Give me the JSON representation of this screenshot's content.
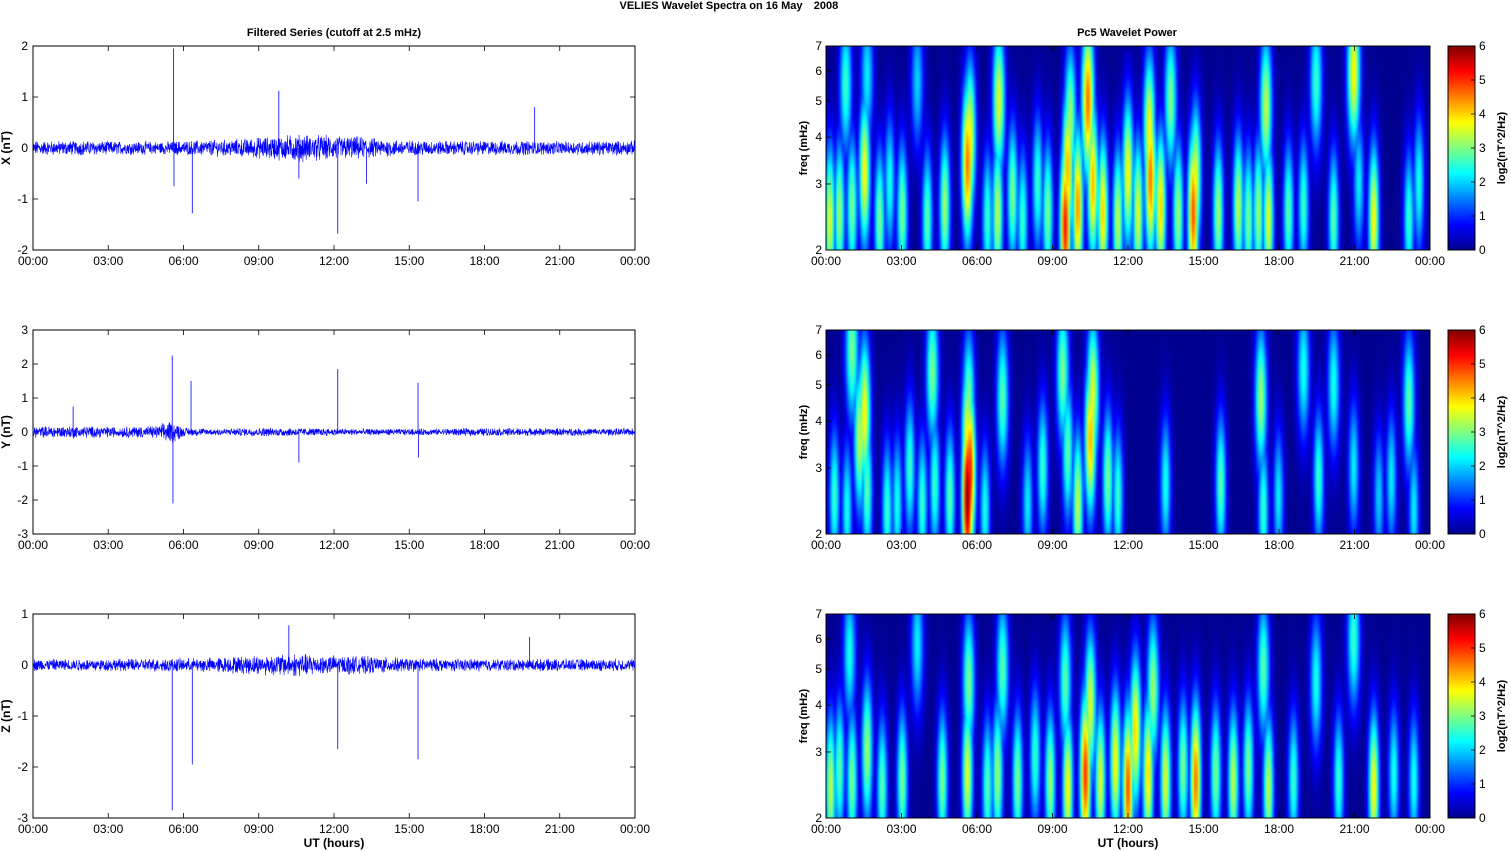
{
  "figure": {
    "suptitle": "VELIES Wavelet Spectra on 16 May",
    "year": "2008",
    "left_title": "Filtered Series (cutoff at 2.5 mHz)",
    "right_title": "Pc5 Wavelet Power",
    "xlabel": "UT (hours)",
    "x_ticks": [
      "00:00",
      "03:00",
      "06:00",
      "09:00",
      "12:00",
      "15:00",
      "18:00",
      "21:00",
      "00:00"
    ],
    "freq_label": "freq (mHz)",
    "freq_ticks": [
      "2",
      "3",
      "4",
      "5",
      "6",
      "7"
    ],
    "colorbar_label": "log2(nT^2/Hz)",
    "colorbar_ticks": [
      "0",
      "1",
      "2",
      "3",
      "4",
      "5",
      "6"
    ],
    "colorbar_colors": [
      "#00008f",
      "#0000ff",
      "#0080ff",
      "#00ffff",
      "#80ff80",
      "#ffff00",
      "#ff8000",
      "#ff0000",
      "#800000"
    ],
    "trace_color": "#0000ff"
  },
  "chart_data": [
    {
      "type": "line",
      "title": "Filtered Series (cutoff at 2.5 mHz)",
      "ylabel": "X (nT)",
      "xlabel": "",
      "xlim": [
        0,
        24
      ],
      "ylim": [
        -2,
        2
      ],
      "y_ticks": [
        "-2",
        "-1",
        "0",
        "1",
        "2"
      ],
      "noise": 0.12,
      "series": [
        {
          "noise_envelope": {
            "x": [
              0,
              2,
              4,
              5.4,
              6,
              8,
              9.5,
              10.5,
              12,
              13,
              14,
              15,
              16.5,
              18,
              19.5,
              21,
              22,
              24
            ],
            "amp": [
              1.0,
              1.0,
              0.9,
              0.9,
              1.0,
              1.2,
              1.6,
              1.9,
              1.7,
              1.6,
              1.2,
              1.1,
              1.0,
              1.0,
              1.0,
              0.9,
              1.0,
              1.0
            ]
          },
          "spikes": [
            {
              "x": 5.6,
              "y": 1.95
            },
            {
              "x": 5.62,
              "y": -0.75
            },
            {
              "x": 6.35,
              "y": -1.28
            },
            {
              "x": 9.8,
              "y": 1.12
            },
            {
              "x": 12.15,
              "y": -1.68
            },
            {
              "x": 15.35,
              "y": -1.05
            },
            {
              "x": 20.0,
              "y": 0.8
            },
            {
              "x": 10.6,
              "y": -0.6
            },
            {
              "x": 13.3,
              "y": -0.7
            }
          ]
        }
      ]
    },
    {
      "type": "line",
      "ylabel": "Y (nT)",
      "xlabel": "",
      "xlim": [
        0,
        24
      ],
      "ylim": [
        -3,
        3
      ],
      "y_ticks": [
        "-3",
        "-2",
        "-1",
        "0",
        "1",
        "2",
        "3"
      ],
      "noise": 0.11,
      "series": [
        {
          "noise_envelope": {
            "x": [
              0,
              1.5,
              3,
              5,
              5.5,
              6,
              7,
              10,
              11,
              12,
              15,
              18,
              24
            ],
            "amp": [
              1.3,
              1.4,
              1.2,
              1.4,
              2.8,
              1.0,
              0.8,
              1.0,
              0.9,
              0.8,
              0.7,
              0.9,
              0.8
            ]
          },
          "spikes": [
            {
              "x": 5.55,
              "y": 2.25
            },
            {
              "x": 5.58,
              "y": -2.1
            },
            {
              "x": 6.3,
              "y": 1.5
            },
            {
              "x": 12.15,
              "y": 1.85
            },
            {
              "x": 15.35,
              "y": 1.45
            },
            {
              "x": 15.37,
              "y": -0.75
            },
            {
              "x": 10.6,
              "y": -0.9
            },
            {
              "x": 1.6,
              "y": 0.75
            }
          ]
        }
      ]
    },
    {
      "type": "line",
      "ylabel": "Z (nT)",
      "xlabel": "UT (hours)",
      "xlim": [
        0,
        24
      ],
      "ylim": [
        -3,
        1
      ],
      "y_ticks": [
        "-3",
        "-2",
        "-1",
        "0",
        "1"
      ],
      "noise": 0.1,
      "series": [
        {
          "noise_envelope": {
            "x": [
              0,
              3,
              5.5,
              7,
              9,
              10.5,
              12,
              13.5,
              15,
              18,
              21,
              24
            ],
            "amp": [
              1.0,
              1.0,
              1.1,
              1.2,
              1.6,
              1.9,
              1.6,
              1.4,
              1.1,
              1.0,
              1.0,
              1.0
            ]
          },
          "spikes": [
            {
              "x": 5.55,
              "y": -2.85
            },
            {
              "x": 6.35,
              "y": -1.95
            },
            {
              "x": 12.15,
              "y": -1.65
            },
            {
              "x": 15.35,
              "y": -1.85
            },
            {
              "x": 10.2,
              "y": 0.78
            },
            {
              "x": 19.8,
              "y": 0.55
            }
          ]
        }
      ]
    },
    {
      "type": "heatmap",
      "title": "Pc5 Wavelet Power",
      "xlabel": "",
      "ylabel": "freq (mHz)",
      "xlim": [
        0,
        24
      ],
      "ylim": [
        2,
        7
      ],
      "yscale": "log",
      "clim": [
        0,
        6
      ],
      "blobs": [
        [
          0.12,
          2.4,
          3.6
        ],
        [
          0.5,
          2.5,
          3.2
        ],
        [
          0.75,
          5.5,
          2.6
        ],
        [
          1.0,
          2.6,
          3.0
        ],
        [
          1.5,
          3.2,
          3.8
        ],
        [
          1.6,
          5.8,
          2.2
        ],
        [
          2.1,
          2.4,
          3.0
        ],
        [
          2.5,
          3.0,
          2.4
        ],
        [
          3.0,
          2.5,
          3.0
        ],
        [
          3.6,
          5.6,
          2.0
        ],
        [
          4.0,
          2.4,
          2.8
        ],
        [
          4.7,
          2.6,
          3.2
        ],
        [
          5.6,
          3.4,
          4.6
        ],
        [
          5.7,
          4.0,
          3.8
        ],
        [
          6.4,
          2.4,
          2.6
        ],
        [
          6.8,
          2.5,
          3.4
        ],
        [
          6.85,
          5.0,
          3.6
        ],
        [
          7.4,
          2.8,
          3.0
        ],
        [
          7.8,
          2.4,
          2.6
        ],
        [
          8.4,
          3.0,
          2.6
        ],
        [
          8.8,
          2.5,
          3.0
        ],
        [
          9.5,
          2.3,
          5.2
        ],
        [
          9.6,
          3.3,
          4.2
        ],
        [
          9.7,
          4.5,
          3.2
        ],
        [
          10.0,
          2.6,
          4.4
        ],
        [
          10.4,
          5.0,
          4.6
        ],
        [
          10.6,
          3.0,
          4.2
        ],
        [
          11.0,
          2.5,
          4.0
        ],
        [
          11.6,
          2.4,
          3.4
        ],
        [
          12.0,
          3.2,
          3.8
        ],
        [
          12.4,
          2.5,
          3.6
        ],
        [
          12.9,
          3.1,
          4.6
        ],
        [
          12.85,
          4.2,
          3.8
        ],
        [
          13.3,
          2.6,
          4.0
        ],
        [
          13.7,
          5.0,
          3.0
        ],
        [
          14.0,
          2.5,
          3.2
        ],
        [
          14.6,
          2.5,
          4.8
        ],
        [
          14.7,
          3.1,
          3.6
        ],
        [
          15.6,
          2.5,
          3.2
        ],
        [
          16.4,
          2.6,
          3.4
        ],
        [
          16.8,
          2.4,
          3.0
        ],
        [
          17.2,
          2.5,
          3.2
        ],
        [
          17.5,
          4.8,
          3.4
        ],
        [
          17.6,
          2.4,
          3.6
        ],
        [
          18.4,
          2.5,
          2.8
        ],
        [
          19.0,
          2.6,
          2.6
        ],
        [
          19.5,
          5.6,
          2.6
        ],
        [
          20.2,
          2.4,
          2.8
        ],
        [
          21.0,
          6.0,
          3.8
        ],
        [
          21.2,
          3.0,
          2.2
        ],
        [
          21.8,
          2.4,
          3.8
        ],
        [
          23.2,
          2.4,
          2.6
        ],
        [
          23.6,
          3.0,
          2.4
        ]
      ]
    },
    {
      "type": "heatmap",
      "ylabel": "freq (mHz)",
      "xlabel": "",
      "xlim": [
        0,
        24
      ],
      "ylim": [
        2,
        7
      ],
      "yscale": "log",
      "clim": [
        0,
        6
      ],
      "blobs": [
        [
          0.3,
          2.5,
          2.6
        ],
        [
          0.8,
          2.3,
          2.4
        ],
        [
          1.0,
          6.2,
          3.0
        ],
        [
          1.3,
          3.6,
          3.4
        ],
        [
          1.5,
          4.2,
          3.8
        ],
        [
          1.6,
          2.6,
          2.8
        ],
        [
          2.4,
          2.3,
          2.6
        ],
        [
          2.8,
          2.4,
          2.4
        ],
        [
          3.3,
          3.0,
          2.6
        ],
        [
          3.8,
          2.4,
          2.6
        ],
        [
          4.2,
          5.4,
          3.0
        ],
        [
          4.3,
          2.7,
          2.6
        ],
        [
          4.9,
          2.5,
          2.8
        ],
        [
          5.6,
          2.5,
          6.0
        ],
        [
          5.7,
          2.9,
          5.2
        ],
        [
          5.6,
          3.6,
          3.8
        ],
        [
          5.65,
          4.5,
          3.0
        ],
        [
          6.3,
          2.3,
          2.4
        ],
        [
          7.0,
          4.6,
          2.8
        ],
        [
          8.0,
          2.4,
          2.2
        ],
        [
          8.6,
          3.0,
          2.6
        ],
        [
          9.4,
          5.4,
          3.0
        ],
        [
          9.6,
          3.3,
          2.8
        ],
        [
          10.0,
          2.4,
          3.4
        ],
        [
          10.5,
          3.6,
          4.2
        ],
        [
          10.6,
          4.8,
          3.6
        ],
        [
          11.2,
          2.8,
          3.0
        ],
        [
          11.6,
          2.5,
          2.6
        ],
        [
          13.5,
          2.7,
          2.4
        ],
        [
          15.7,
          2.7,
          2.8
        ],
        [
          17.3,
          4.6,
          3.2
        ],
        [
          17.4,
          2.3,
          2.6
        ],
        [
          18.0,
          2.5,
          2.2
        ],
        [
          19.0,
          5.5,
          2.4
        ],
        [
          19.6,
          2.8,
          2.6
        ],
        [
          20.2,
          5.0,
          2.4
        ],
        [
          21.0,
          3.0,
          2.2
        ],
        [
          22.0,
          2.5,
          2.0
        ],
        [
          22.5,
          2.8,
          2.2
        ],
        [
          23.2,
          4.5,
          2.8
        ],
        [
          23.4,
          2.3,
          2.2
        ]
      ]
    },
    {
      "type": "heatmap",
      "ylabel": "freq (mHz)",
      "xlabel": "UT (hours)",
      "xlim": [
        0,
        24
      ],
      "ylim": [
        2,
        7
      ],
      "yscale": "log",
      "clim": [
        0,
        6
      ],
      "blobs": [
        [
          0.15,
          2.4,
          3.4
        ],
        [
          0.5,
          2.7,
          2.8
        ],
        [
          0.9,
          5.5,
          2.4
        ],
        [
          1.0,
          2.5,
          3.0
        ],
        [
          1.6,
          3.0,
          3.2
        ],
        [
          2.2,
          2.4,
          2.8
        ],
        [
          3.0,
          2.5,
          3.0
        ],
        [
          3.6,
          5.8,
          2.2
        ],
        [
          4.6,
          2.5,
          3.0
        ],
        [
          5.6,
          2.6,
          3.6
        ],
        [
          5.65,
          4.6,
          3.0
        ],
        [
          6.4,
          2.4,
          2.8
        ],
        [
          6.8,
          2.6,
          3.2
        ],
        [
          7.0,
          5.0,
          2.8
        ],
        [
          7.6,
          2.5,
          3.0
        ],
        [
          8.3,
          2.9,
          2.6
        ],
        [
          8.9,
          2.5,
          3.2
        ],
        [
          9.6,
          2.4,
          3.8
        ],
        [
          9.5,
          4.6,
          2.8
        ],
        [
          10.3,
          2.6,
          5.0
        ],
        [
          10.5,
          4.0,
          3.6
        ],
        [
          10.9,
          2.5,
          3.6
        ],
        [
          11.5,
          2.8,
          3.8
        ],
        [
          12.0,
          2.4,
          4.8
        ],
        [
          12.3,
          3.4,
          4.0
        ],
        [
          12.8,
          2.6,
          4.0
        ],
        [
          13.0,
          4.4,
          3.2
        ],
        [
          13.5,
          2.5,
          3.6
        ],
        [
          14.2,
          2.7,
          3.0
        ],
        [
          14.7,
          2.5,
          4.6
        ],
        [
          15.5,
          2.6,
          3.0
        ],
        [
          16.2,
          2.5,
          3.4
        ],
        [
          16.8,
          2.7,
          3.0
        ],
        [
          17.6,
          2.4,
          3.4
        ],
        [
          17.4,
          5.0,
          2.8
        ],
        [
          18.6,
          2.5,
          2.6
        ],
        [
          19.5,
          4.6,
          2.4
        ],
        [
          20.4,
          2.5,
          2.6
        ],
        [
          21.0,
          6.0,
          2.6
        ],
        [
          21.8,
          2.4,
          3.8
        ],
        [
          22.6,
          2.6,
          2.4
        ],
        [
          23.4,
          2.5,
          2.4
        ]
      ]
    }
  ]
}
